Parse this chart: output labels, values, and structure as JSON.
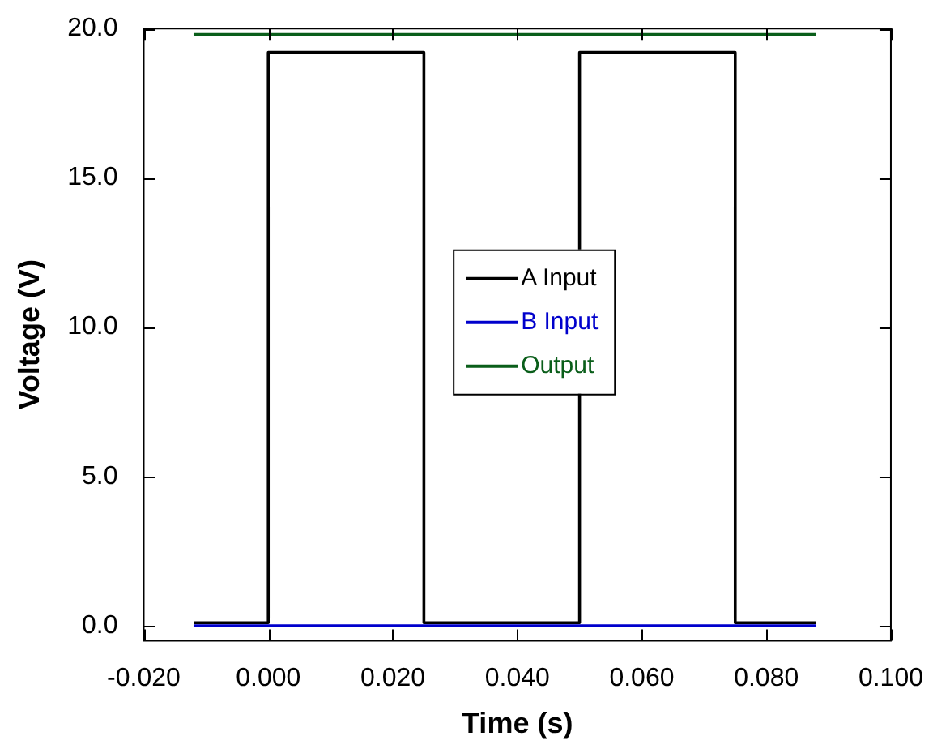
{
  "chart_data": {
    "type": "line",
    "xlabel": "Time (s)",
    "ylabel": "Voltage (V)",
    "xlim": [
      -0.02,
      0.1
    ],
    "xticks": [
      {
        "value": -0.02,
        "label": "-0.020"
      },
      {
        "value": 0,
        "label": "0.000"
      },
      {
        "value": 0.02,
        "label": "0.020"
      },
      {
        "value": 0.04,
        "label": "0.040"
      },
      {
        "value": 0.06,
        "label": "0.060"
      },
      {
        "value": 0.08,
        "label": "0.080"
      },
      {
        "value": 0.1,
        "label": "0.100"
      }
    ],
    "ylim": [
      -0.5,
      20
    ],
    "yticks": [
      {
        "value": 0,
        "label": "0.0"
      },
      {
        "value": 5,
        "label": "5.0"
      },
      {
        "value": 10,
        "label": "10.0"
      },
      {
        "value": 15,
        "label": "15.0"
      },
      {
        "value": 20,
        "label": "20.0"
      }
    ],
    "series": [
      {
        "name": "A Input",
        "color": "#000000",
        "x": [
          -0.012,
          0,
          0,
          0.025,
          0.025,
          0.05,
          0.05,
          0.075,
          0.075,
          0.088
        ],
        "values": [
          0.1,
          0.1,
          19.2,
          19.2,
          0.1,
          0.1,
          19.2,
          19.2,
          0.1,
          0.1
        ]
      },
      {
        "name": "B Input",
        "color": "#0000cc",
        "x": [
          -0.012,
          0.088
        ],
        "values": [
          0,
          0
        ]
      },
      {
        "name": "Output",
        "color": "#0a5e1a",
        "x": [
          -0.012,
          0.088
        ],
        "values": [
          19.8,
          19.8
        ]
      }
    ],
    "grid": false,
    "legend": "center",
    "marker": "none",
    "line_style": "solid"
  }
}
